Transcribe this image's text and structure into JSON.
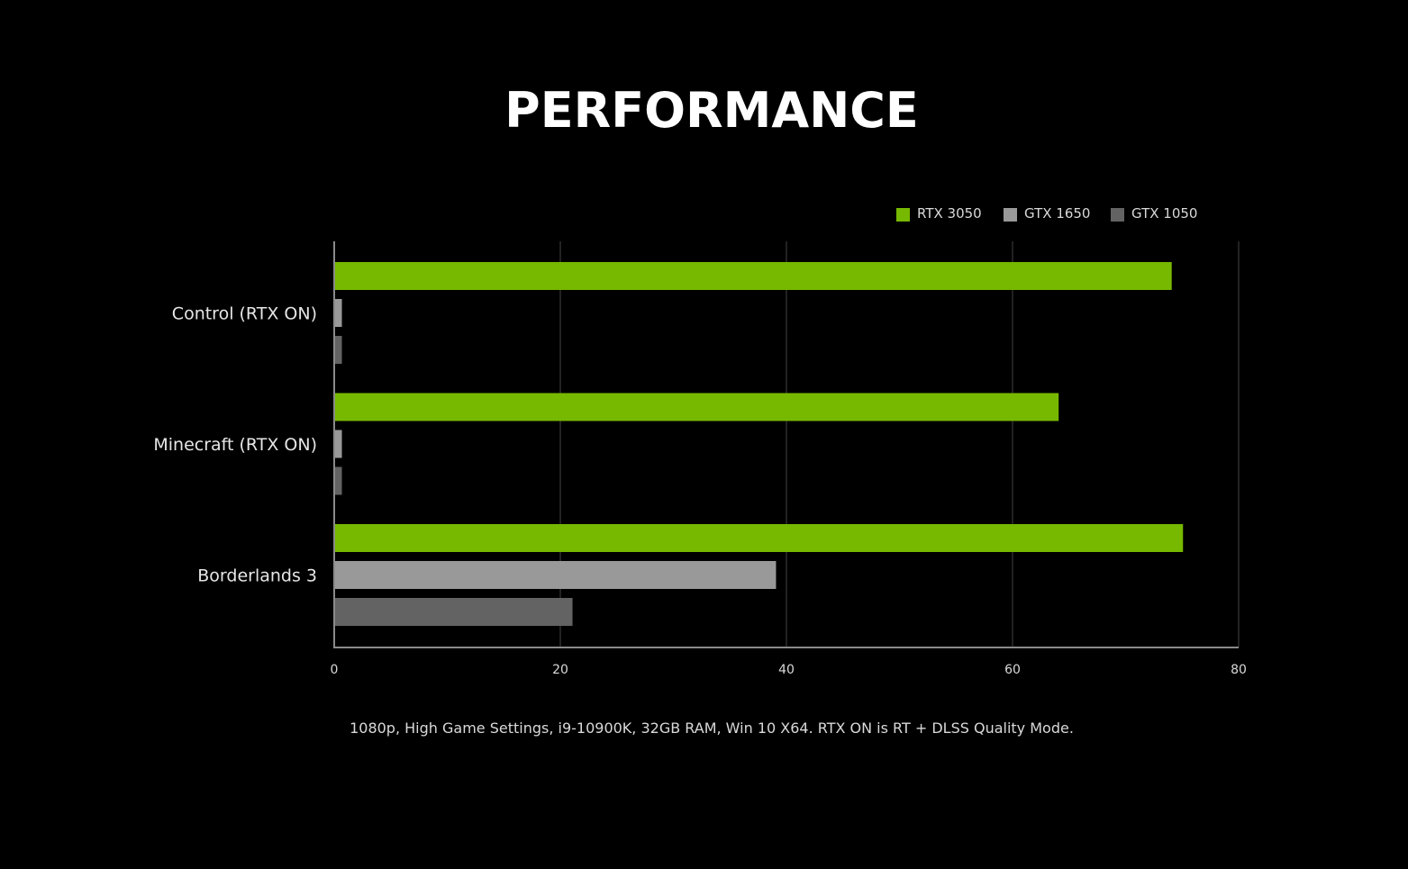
{
  "chart_data": {
    "type": "bar",
    "orientation": "horizontal",
    "title": "PERFORMANCE",
    "categories": [
      "Control (RTX ON)",
      "Minecraft (RTX ON)",
      "Borderlands 3"
    ],
    "series": [
      {
        "name": "RTX 3050",
        "color": "#76b900",
        "values": [
          74,
          64,
          75
        ]
      },
      {
        "name": "GTX 1650",
        "color": "#999999",
        "values": [
          0.6,
          0.6,
          39
        ]
      },
      {
        "name": "GTX 1050",
        "color": "#636363",
        "values": [
          0.6,
          0.6,
          21
        ]
      }
    ],
    "xlim": [
      0,
      80
    ],
    "xticks": [
      "0",
      "20",
      "40",
      "60",
      "80"
    ],
    "grid": "vertical",
    "legend_position": "top-right",
    "footnote": "1080p, High Game Settings, i9-10900K, 32GB RAM, Win 10 X64. RTX ON is RT + DLSS Quality Mode."
  }
}
